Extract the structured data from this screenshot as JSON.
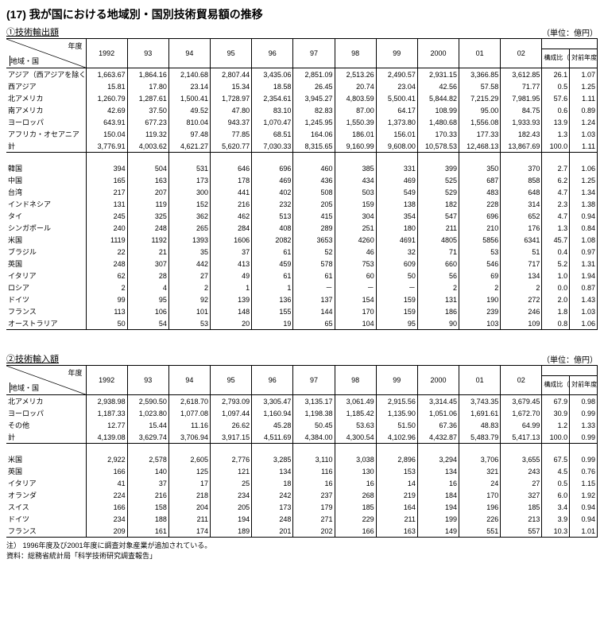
{
  "title": "(17) 我が国における地域別・国別技術貿易額の推移",
  "unit_label": "（単位：億円）",
  "header_year_label": "年度",
  "header_region_label": "地域・国",
  "col_ratio": "構成比（％）",
  "col_yoy": "対前年度 比",
  "years": [
    "1992",
    "93",
    "94",
    "95",
    "96",
    "97",
    "98",
    "99",
    "2000",
    "01",
    "02"
  ],
  "export": {
    "subtitle": "①技術輸出額",
    "top_rows": [
      {
        "label": "アジア（西アジアを除く）",
        "vals": [
          "1,663.67",
          "1,864.16",
          "2,140.68",
          "2,807.44",
          "3,435.06",
          "2,851.09",
          "2,513.26",
          "2,490.57",
          "2,931.15",
          "3,366.85",
          "3,612.85"
        ],
        "ratio": "26.1",
        "yoy": "1.07"
      },
      {
        "label": "西アジア",
        "vals": [
          "15.81",
          "17.80",
          "23.14",
          "15.34",
          "18.58",
          "26.45",
          "20.74",
          "23.04",
          "42.56",
          "57.58",
          "71.77"
        ],
        "ratio": "0.5",
        "yoy": "1.25"
      },
      {
        "label": "北アメリカ",
        "vals": [
          "1,260.79",
          "1,287.61",
          "1,500.41",
          "1,728.97",
          "2,354.61",
          "3,945.27",
          "4,803.59",
          "5,500.41",
          "5,844.82",
          "7,215.29",
          "7,981.95"
        ],
        "ratio": "57.6",
        "yoy": "1.11"
      },
      {
        "label": "南アメリカ",
        "vals": [
          "42.69",
          "37.50",
          "49.52",
          "47.80",
          "83.10",
          "82.83",
          "87.00",
          "64.17",
          "108.99",
          "95.00",
          "84.75"
        ],
        "ratio": "0.6",
        "yoy": "0.89"
      },
      {
        "label": "ヨーロッパ",
        "vals": [
          "643.91",
          "677.23",
          "810.04",
          "943.37",
          "1,070.47",
          "1,245.95",
          "1,550.39",
          "1,373.80",
          "1,480.68",
          "1,556.08",
          "1,933.93"
        ],
        "ratio": "13.9",
        "yoy": "1.24"
      },
      {
        "label": "アフリカ・オセアニア",
        "vals": [
          "150.04",
          "119.32",
          "97.48",
          "77.85",
          "68.51",
          "164.06",
          "186.01",
          "156.01",
          "170.33",
          "177.33",
          "182.43"
        ],
        "ratio": "1.3",
        "yoy": "1.03"
      },
      {
        "label": "計",
        "vals": [
          "3,776.91",
          "4,003.62",
          "4,621.27",
          "5,620.77",
          "7,030.33",
          "8,315.65",
          "9,160.99",
          "9,608.00",
          "10,578.53",
          "12,468.13",
          "13,867.69"
        ],
        "ratio": "100.0",
        "yoy": "1.11"
      }
    ],
    "bottom_rows": [
      {
        "label": "韓国",
        "vals": [
          "394",
          "504",
          "531",
          "646",
          "696",
          "460",
          "385",
          "331",
          "399",
          "350",
          "370"
        ],
        "ratio": "2.7",
        "yoy": "1.06"
      },
      {
        "label": "中国",
        "vals": [
          "165",
          "163",
          "173",
          "178",
          "469",
          "436",
          "434",
          "469",
          "525",
          "687",
          "858"
        ],
        "ratio": "6.2",
        "yoy": "1.25"
      },
      {
        "label": "台湾",
        "vals": [
          "217",
          "207",
          "300",
          "441",
          "402",
          "508",
          "503",
          "549",
          "529",
          "483",
          "648"
        ],
        "ratio": "4.7",
        "yoy": "1.34"
      },
      {
        "label": "インドネシア",
        "vals": [
          "131",
          "119",
          "152",
          "216",
          "232",
          "205",
          "159",
          "138",
          "182",
          "228",
          "314"
        ],
        "ratio": "2.3",
        "yoy": "1.38"
      },
      {
        "label": "タイ",
        "vals": [
          "245",
          "325",
          "362",
          "462",
          "513",
          "415",
          "304",
          "354",
          "547",
          "696",
          "652"
        ],
        "ratio": "4.7",
        "yoy": "0.94"
      },
      {
        "label": "シンガポール",
        "vals": [
          "240",
          "248",
          "265",
          "284",
          "408",
          "289",
          "251",
          "180",
          "211",
          "210",
          "176"
        ],
        "ratio": "1.3",
        "yoy": "0.84"
      },
      {
        "label": "米国",
        "vals": [
          "1119",
          "1192",
          "1393",
          "1606",
          "2082",
          "3653",
          "4260",
          "4691",
          "4805",
          "5856",
          "6341"
        ],
        "ratio": "45.7",
        "yoy": "1.08"
      },
      {
        "label": "ブラジル",
        "vals": [
          "22",
          "21",
          "35",
          "37",
          "61",
          "52",
          "46",
          "32",
          "71",
          "53",
          "51"
        ],
        "ratio": "0.4",
        "yoy": "0.97"
      },
      {
        "label": "英国",
        "vals": [
          "248",
          "307",
          "442",
          "413",
          "459",
          "578",
          "753",
          "609",
          "660",
          "546",
          "717"
        ],
        "ratio": "5.2",
        "yoy": "1.31"
      },
      {
        "label": "イタリア",
        "vals": [
          "62",
          "28",
          "27",
          "49",
          "61",
          "61",
          "60",
          "50",
          "56",
          "69",
          "134"
        ],
        "ratio": "1.0",
        "yoy": "1.94"
      },
      {
        "label": "ロシア",
        "vals": [
          "2",
          "4",
          "2",
          "1",
          "1",
          "－",
          "－",
          "－",
          "2",
          "2",
          "2"
        ],
        "ratio": "0.0",
        "yoy": "0.87"
      },
      {
        "label": "ドイツ",
        "vals": [
          "99",
          "95",
          "92",
          "139",
          "136",
          "137",
          "154",
          "159",
          "131",
          "190",
          "272"
        ],
        "ratio": "2.0",
        "yoy": "1.43"
      },
      {
        "label": "フランス",
        "vals": [
          "113",
          "106",
          "101",
          "148",
          "155",
          "144",
          "170",
          "159",
          "186",
          "239",
          "246"
        ],
        "ratio": "1.8",
        "yoy": "1.03"
      },
      {
        "label": "オーストラリア",
        "vals": [
          "50",
          "54",
          "53",
          "20",
          "19",
          "65",
          "104",
          "95",
          "90",
          "103",
          "109"
        ],
        "ratio": "0.8",
        "yoy": "1.06"
      }
    ]
  },
  "import": {
    "subtitle": "②技術輸入額",
    "top_rows": [
      {
        "label": "北アメリカ",
        "vals": [
          "2,938.98",
          "2,590.50",
          "2,618.70",
          "2,793.09",
          "3,305.47",
          "3,135.17",
          "3,061.49",
          "2,915.56",
          "3,314.45",
          "3,743.35",
          "3,679.45"
        ],
        "ratio": "67.9",
        "yoy": "0.98"
      },
      {
        "label": "ヨーロッパ",
        "vals": [
          "1,187.33",
          "1,023.80",
          "1,077.08",
          "1,097.44",
          "1,160.94",
          "1,198.38",
          "1,185.42",
          "1,135.90",
          "1,051.06",
          "1,691.61",
          "1,672.70"
        ],
        "ratio": "30.9",
        "yoy": "0.99"
      },
      {
        "label": "その他",
        "vals": [
          "12.77",
          "15.44",
          "11.16",
          "26.62",
          "45.28",
          "50.45",
          "53.63",
          "51.50",
          "67.36",
          "48.83",
          "64.99"
        ],
        "ratio": "1.2",
        "yoy": "1.33"
      },
      {
        "label": "計",
        "vals": [
          "4,139.08",
          "3,629.74",
          "3,706.94",
          "3,917.15",
          "4,511.69",
          "4,384.00",
          "4,300.54",
          "4,102.96",
          "4,432.87",
          "5,483.79",
          "5,417.13"
        ],
        "ratio": "100.0",
        "yoy": "0.99"
      }
    ],
    "bottom_rows": [
      {
        "label": "米国",
        "vals": [
          "2,922",
          "2,578",
          "2,605",
          "2,776",
          "3,285",
          "3,110",
          "3,038",
          "2,896",
          "3,294",
          "3,706",
          "3,655"
        ],
        "ratio": "67.5",
        "yoy": "0.99"
      },
      {
        "label": "英国",
        "vals": [
          "166",
          "140",
          "125",
          "121",
          "134",
          "116",
          "130",
          "153",
          "134",
          "321",
          "243"
        ],
        "ratio": "4.5",
        "yoy": "0.76"
      },
      {
        "label": "イタリア",
        "vals": [
          "41",
          "37",
          "17",
          "25",
          "18",
          "16",
          "16",
          "14",
          "16",
          "24",
          "27"
        ],
        "ratio": "0.5",
        "yoy": "1.15"
      },
      {
        "label": "オランダ",
        "vals": [
          "224",
          "216",
          "218",
          "234",
          "242",
          "237",
          "268",
          "219",
          "184",
          "170",
          "327"
        ],
        "ratio": "6.0",
        "yoy": "1.92"
      },
      {
        "label": "スイス",
        "vals": [
          "166",
          "158",
          "204",
          "205",
          "173",
          "179",
          "185",
          "164",
          "194",
          "196",
          "185"
        ],
        "ratio": "3.4",
        "yoy": "0.94"
      },
      {
        "label": "ドイツ",
        "vals": [
          "234",
          "188",
          "211",
          "194",
          "248",
          "271",
          "229",
          "211",
          "199",
          "226",
          "213"
        ],
        "ratio": "3.9",
        "yoy": "0.94"
      },
      {
        "label": "フランス",
        "vals": [
          "209",
          "161",
          "174",
          "189",
          "201",
          "202",
          "166",
          "163",
          "149",
          "551",
          "557"
        ],
        "ratio": "10.3",
        "yoy": "1.01"
      }
    ]
  },
  "notes": [
    "注） 1996年度及び2001年度に調査対象産業が追加されている。",
    "資料：総務省統計局「科学技術研究調査報告」"
  ]
}
